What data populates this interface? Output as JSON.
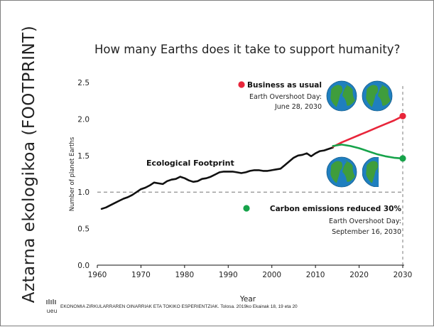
{
  "slide": {
    "side_title": "Aztarna ekologikoa (FOOTPRINT)",
    "footer": "EKONOMIA ZIRKULARRAREN OINARRIAK ETA TOKIKO ESPERIENTZIAK. Tolosa. 2019ko Ekainak 18, 19 eta 20",
    "logo_text": "ueu"
  },
  "colors": {
    "line": "#111111",
    "business": "#e8253a",
    "carbon": "#16a34a",
    "reference": "#777777",
    "ocean": "#1f7fbf",
    "land": "#3f9d3c"
  },
  "chart_data": {
    "type": "line",
    "title": "How many Earths does it take to support humanity?",
    "xlabel": "Year",
    "ylabel": "Number of planet Earths",
    "xlim": [
      1960,
      2030
    ],
    "ylim": [
      0.0,
      2.5
    ],
    "xticks": [
      "1960",
      "1970",
      "1980",
      "1990",
      "2000",
      "2010",
      "2020",
      "2030"
    ],
    "yticks": [
      "0.0",
      "0.5",
      "1.0",
      "1.5",
      "2.0",
      "2.5"
    ],
    "reference_line": 1.0,
    "grid": false,
    "series": [
      {
        "name": "Ecological Footprint",
        "x": [
          1961,
          1962,
          1963,
          1964,
          1965,
          1966,
          1967,
          1968,
          1969,
          1970,
          1971,
          1972,
          1973,
          1974,
          1975,
          1976,
          1977,
          1978,
          1979,
          1980,
          1981,
          1982,
          1983,
          1984,
          1985,
          1986,
          1987,
          1988,
          1989,
          1990,
          1991,
          1992,
          1993,
          1994,
          1995,
          1996,
          1997,
          1998,
          1999,
          2000,
          2001,
          2002,
          2003,
          2004,
          2005,
          2006,
          2007,
          2008,
          2009,
          2010,
          2011,
          2012,
          2013,
          2014
        ],
        "y": [
          0.77,
          0.79,
          0.82,
          0.85,
          0.88,
          0.91,
          0.93,
          0.96,
          1.0,
          1.04,
          1.06,
          1.09,
          1.13,
          1.12,
          1.11,
          1.15,
          1.17,
          1.18,
          1.21,
          1.19,
          1.16,
          1.14,
          1.15,
          1.18,
          1.19,
          1.21,
          1.24,
          1.27,
          1.28,
          1.28,
          1.28,
          1.27,
          1.26,
          1.27,
          1.29,
          1.3,
          1.3,
          1.29,
          1.29,
          1.3,
          1.31,
          1.32,
          1.37,
          1.42,
          1.47,
          1.5,
          1.51,
          1.53,
          1.49,
          1.53,
          1.56,
          1.57,
          1.59,
          1.61
        ]
      },
      {
        "name": "Business as usual",
        "x": [
          2014,
          2016,
          2018,
          2020,
          2022,
          2024,
          2026,
          2028,
          2030
        ],
        "y": [
          1.62,
          1.68,
          1.73,
          1.78,
          1.83,
          1.88,
          1.93,
          1.98,
          2.04
        ]
      },
      {
        "name": "Carbon emissions reduced 30%",
        "x": [
          2014,
          2016,
          2018,
          2020,
          2022,
          2024,
          2026,
          2028,
          2030
        ],
        "y": [
          1.63,
          1.65,
          1.63,
          1.6,
          1.56,
          1.52,
          1.49,
          1.47,
          1.46
        ]
      }
    ],
    "annotations": {
      "footprint_label": "Ecological Footprint",
      "bau": {
        "title": "Business as usual",
        "line1": "Earth Overshoot Day:",
        "line2": "June 28, 2030",
        "earths": 2
      },
      "carbon": {
        "title": "Carbon emissions reduced 30%",
        "line1": "Earth Overshoot Day:",
        "line2": "September 16, 2030",
        "earths": 1.5
      }
    }
  }
}
